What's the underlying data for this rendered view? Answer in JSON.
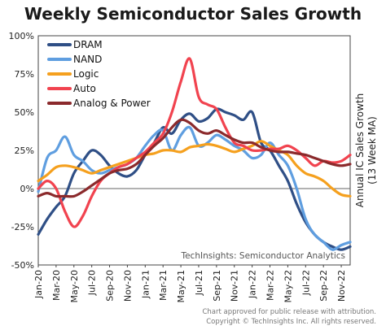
{
  "chart_data": {
    "type": "line",
    "title": "Weekly Semiconductor Sales Growth",
    "ylabel": "Annual IC Sales Growth (13 Week MA)",
    "annotation": "TechInsights: Semiconductor Analytics",
    "ylim": [
      -50,
      100
    ],
    "yticks": [
      100,
      75,
      50,
      25,
      0,
      -25,
      -50
    ],
    "ytick_labels": [
      "100%",
      "75%",
      "50%",
      "25%",
      "0%",
      "-25%",
      "-50%"
    ],
    "xlim": [
      0,
      35
    ],
    "xticks": [
      0,
      2,
      4,
      6,
      8,
      10,
      12,
      14,
      16,
      18,
      20,
      22,
      24,
      26,
      28,
      30,
      32,
      34
    ],
    "xtick_labels": [
      "Jan-20",
      "Mar-20",
      "May-20",
      "Jul-20",
      "Sep-20",
      "Nov-20",
      "Jan-21",
      "Mar-21",
      "May-21",
      "Jul-21",
      "Sep-21",
      "Nov-21",
      "Jan-22",
      "Mar-22",
      "May-22",
      "Jul-22",
      "Sep-22",
      "Nov-22"
    ],
    "grid": false,
    "legend_position": "top-left",
    "x_unit": "months since Jan-20",
    "series": [
      {
        "name": "DRAM",
        "color": "#2f4f86",
        "values": [
          -30,
          -20,
          -12,
          -5,
          10,
          18,
          25,
          22,
          15,
          10,
          8,
          12,
          22,
          30,
          40,
          36,
          45,
          49,
          44,
          46,
          52,
          50,
          48,
          45,
          50,
          30,
          25,
          15,
          5,
          -10,
          -22,
          -30,
          -35,
          -38,
          -40,
          -38
        ]
      },
      {
        "name": "NAND",
        "color": "#5f9ee0",
        "values": [
          -2,
          20,
          25,
          34,
          22,
          18,
          12,
          10,
          12,
          14,
          16,
          20,
          28,
          35,
          38,
          25,
          35,
          40,
          28,
          30,
          35,
          32,
          28,
          25,
          20,
          22,
          30,
          22,
          15,
          0,
          -20,
          -30,
          -35,
          -40,
          -37,
          -35
        ]
      },
      {
        "name": "Logic",
        "color": "#f5a01e",
        "values": [
          5,
          9,
          14,
          15,
          14,
          12,
          10,
          12,
          14,
          16,
          18,
          20,
          22,
          23,
          25,
          25,
          24,
          27,
          28,
          29,
          28,
          26,
          24,
          26,
          28,
          31,
          28,
          25,
          22,
          15,
          10,
          8,
          5,
          0,
          -4,
          -5
        ]
      },
      {
        "name": "Auto",
        "color": "#f1434f",
        "values": [
          0,
          5,
          0,
          -15,
          -25,
          -18,
          -5,
          5,
          10,
          14,
          16,
          20,
          24,
          30,
          36,
          50,
          70,
          85,
          60,
          55,
          52,
          40,
          30,
          28,
          25,
          25,
          26,
          26,
          28,
          25,
          20,
          15,
          18,
          17,
          18,
          22
        ]
      },
      {
        "name": "Analog & Power",
        "color": "#8b2a2c",
        "values": [
          -5,
          -3,
          -5,
          -5,
          -5,
          -2,
          2,
          6,
          10,
          12,
          13,
          16,
          22,
          28,
          33,
          40,
          45,
          43,
          38,
          36,
          38,
          35,
          32,
          30,
          30,
          27,
          25,
          24,
          24,
          23,
          22,
          20,
          18,
          16,
          15,
          16
        ]
      }
    ]
  },
  "footer": {
    "line1": "Chart approved for public release with attribution.",
    "line2": "Copyright © TechInsights Inc.  All rights reserved."
  }
}
